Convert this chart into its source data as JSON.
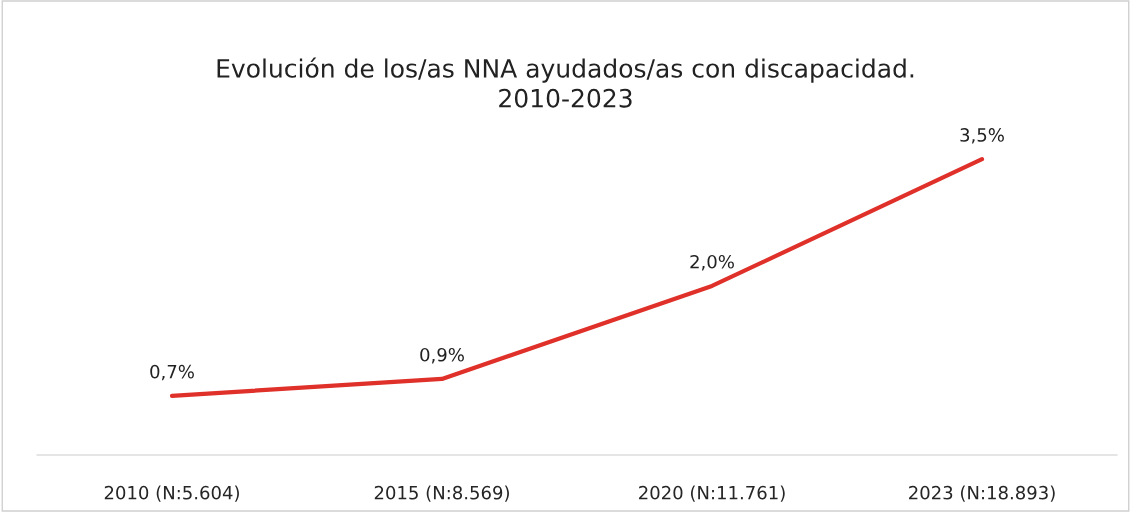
{
  "chart_data": {
    "type": "line",
    "title": "Evolución de los/as NNA ayudados/as con discapacidad.\n2010-2023",
    "categories": [
      "2010 (N:5.604)",
      "2015 (N:8.569)",
      "2020 (N:11.761)",
      "2023 (N:18.893)"
    ],
    "series": [
      {
        "color": "#e0302a",
        "values": [
          0.7,
          0.9,
          2.0,
          3.5
        ],
        "value_labels": [
          "0,7%",
          "0,9%",
          "2,0%",
          "3,5%"
        ]
      }
    ],
    "tick_labels": "x",
    "grid": false,
    "legend": false,
    "marker": "none",
    "line_style": "solid"
  }
}
